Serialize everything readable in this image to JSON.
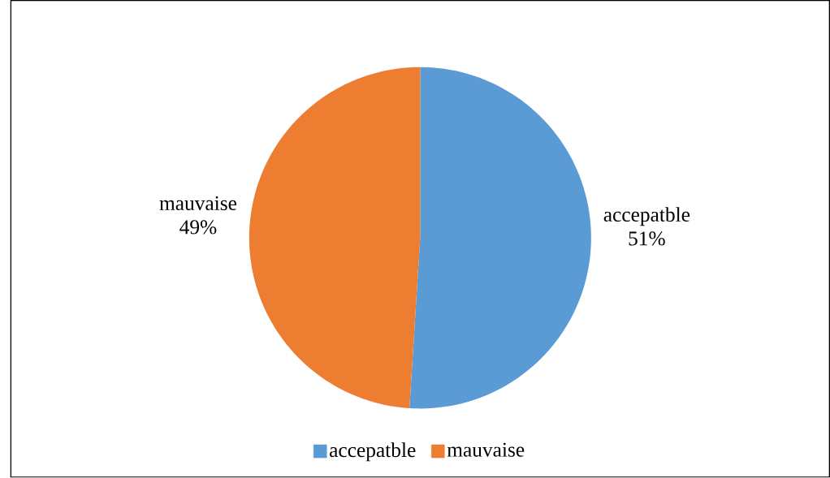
{
  "chart_data": {
    "type": "pie",
    "categories": [
      "accepatble",
      "mauvaise"
    ],
    "values": [
      51,
      49
    ],
    "colors": [
      "#5b9bd5",
      "#ed7d31"
    ],
    "value_labels": [
      "51%",
      "49%"
    ],
    "legend": "bottom"
  }
}
